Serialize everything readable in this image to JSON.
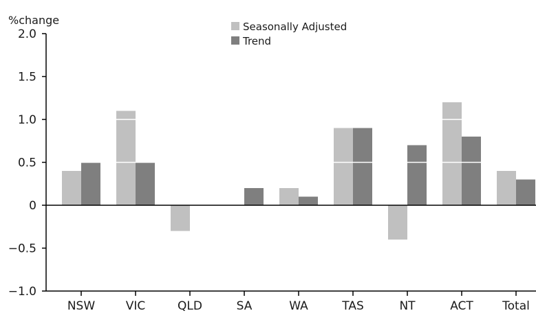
{
  "chart_data": {
    "type": "bar",
    "title": "",
    "ylabel": "%change",
    "xlabel": "",
    "categories": [
      "NSW",
      "VIC",
      "QLD",
      "SA",
      "WA",
      "TAS",
      "NT",
      "ACT",
      "Total"
    ],
    "series": [
      {
        "name": "Seasonally Adjusted",
        "color": "#c0c0c0",
        "values": [
          0.4,
          1.1,
          -0.3,
          0.0,
          0.2,
          0.9,
          -0.4,
          1.2,
          0.4
        ]
      },
      {
        "name": "Trend",
        "color": "#7f7f7f",
        "values": [
          0.5,
          0.5,
          0.0,
          0.2,
          0.1,
          0.9,
          0.7,
          0.8,
          0.3
        ]
      }
    ],
    "ylim": [
      -1.0,
      2.0
    ],
    "yticks": [
      2.0,
      1.5,
      1.0,
      0.5,
      0,
      -0.5,
      -1.0
    ],
    "ytick_labels": [
      "2.0",
      "1.5",
      "1.0",
      "0.5",
      "0",
      "−0.5",
      "−1.0"
    ],
    "grid": "white gridlines drawn over bars",
    "legend_position": "top-center"
  }
}
